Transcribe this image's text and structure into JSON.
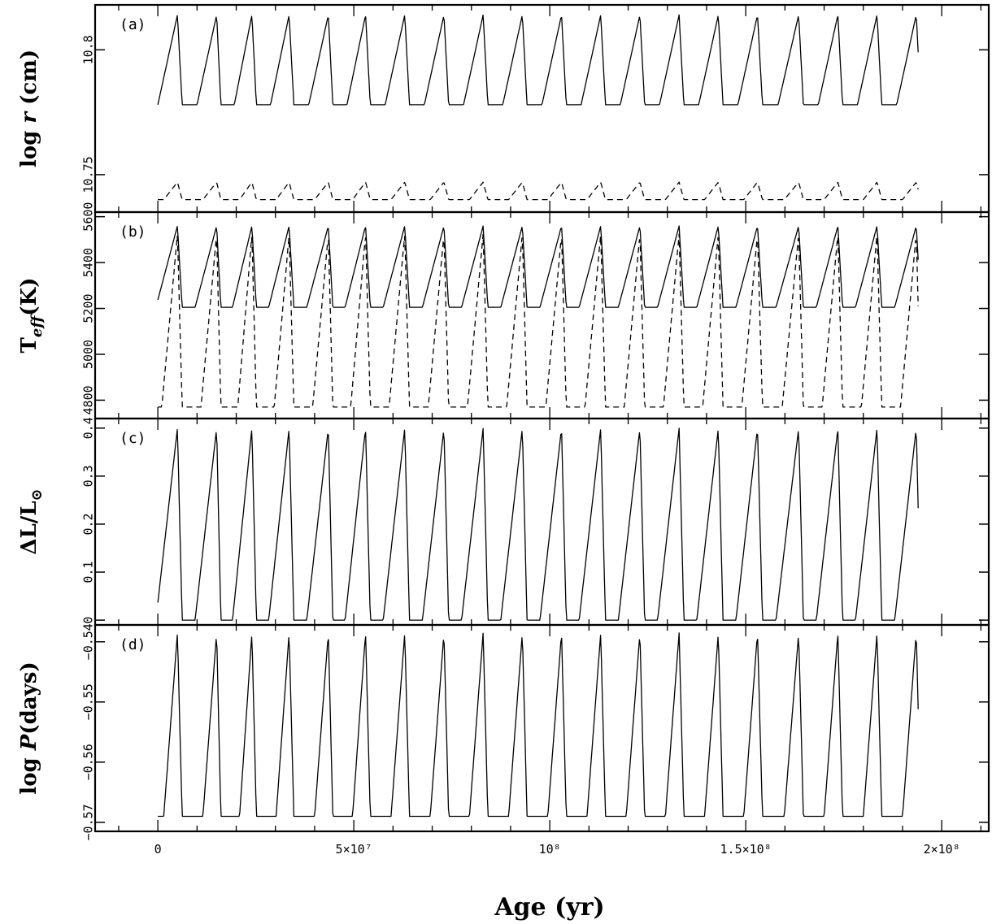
{
  "chart_data": [
    {
      "type": "line",
      "panel_label": "(a)",
      "ylabel_prefix": "log ",
      "ylabel_var": "r",
      "ylabel_suffix": " (cm)",
      "xlim": [
        -16000000,
        212000000
      ],
      "ylim": [
        10.735,
        10.818
      ],
      "yticks": [
        10.75,
        10.8
      ],
      "ytick_labels": [
        "10.75",
        "10.8"
      ],
      "series": [
        {
          "style": "solid",
          "min": 10.778,
          "max": 10.814,
          "low_flat": 0,
          "rise_frac": 0.5
        },
        {
          "style": "dashed",
          "min": 10.74,
          "max": 10.747,
          "low_flat": 0,
          "rise_frac": 0.35
        }
      ]
    },
    {
      "type": "line",
      "panel_label": "(b)",
      "ylabel_prefix": "T",
      "ylabel_sub": "eff",
      "ylabel_suffix": "(K)",
      "xlim": [
        -16000000,
        212000000
      ],
      "ylim": [
        4720,
        5620
      ],
      "yticks": [
        4800,
        5000,
        5200,
        5400,
        5600
      ],
      "ytick_labels": [
        "4800",
        "5000",
        "5200",
        "5400",
        "5600"
      ],
      "series": [
        {
          "style": "solid",
          "min": 5205,
          "max": 5560,
          "low_flat": 0,
          "rise_frac": 0.55
        },
        {
          "style": "dashed",
          "min": 4770,
          "max": 5525,
          "low_flat": 0.18,
          "rise_frac": 0.4
        }
      ]
    },
    {
      "type": "line",
      "panel_label": "(c)",
      "ylabel_prefix": "ΔL/L",
      "ylabel_sub": "⊙",
      "ylabel_suffix": "",
      "xlim": [
        -16000000,
        212000000
      ],
      "ylim": [
        -0.01,
        0.42
      ],
      "yticks": [
        0,
        0.1,
        0.2,
        0.3,
        0.4
      ],
      "ytick_labels": [
        "0",
        "0.1",
        "0.2",
        "0.3",
        "0.4"
      ],
      "series": [
        {
          "style": "solid",
          "min": 0,
          "max": 0.4,
          "low_flat": 0.35,
          "rise_frac": 0.55
        }
      ]
    },
    {
      "type": "line",
      "panel_label": "(d)",
      "ylabel_prefix": "log ",
      "ylabel_var": "P",
      "ylabel_suffix": "(days)",
      "xlim": [
        -16000000,
        212000000
      ],
      "ylim": [
        -0.5715,
        -0.5372
      ],
      "yticks": [
        -0.57,
        -0.56,
        -0.55,
        -0.54
      ],
      "ytick_labels": [
        "−0.57",
        "−0.56",
        "−0.55",
        "−0.54"
      ],
      "series": [
        {
          "style": "solid",
          "min": -0.569,
          "max": -0.5385,
          "low_flat": 0,
          "rise_frac": 0.35
        }
      ]
    }
  ],
  "x_axis": {
    "label": "Age (yr)",
    "ticks": [
      0,
      50000000,
      100000000,
      150000000,
      200000000
    ],
    "tick_labels": [
      "0",
      "5×10⁷",
      "10⁸",
      "1.5×10⁸",
      "2×10⁸"
    ],
    "data_range": [
      0,
      194000000
    ],
    "cycle_peaks": [
      5000000,
      15000000,
      24000000,
      33500000,
      43500000,
      53000000,
      63000000,
      73000000,
      83000000,
      93000000,
      103000000,
      113000000,
      123000000,
      133000000,
      143000000,
      153000000,
      163500000,
      173500000,
      183500000,
      193500000
    ]
  }
}
